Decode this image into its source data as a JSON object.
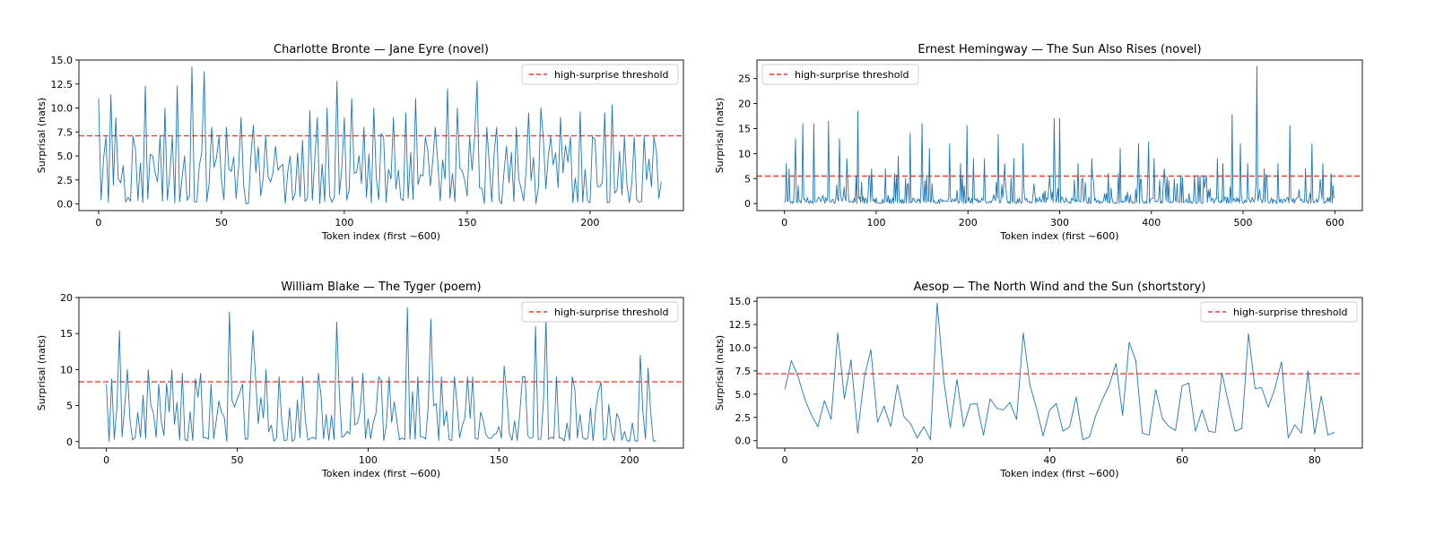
{
  "threshold_color": "#e8412f",
  "series_color": "#1f77b4",
  "chart_data": [
    {
      "type": "line",
      "title": "Charlotte Bronte — Jane Eyre (novel)",
      "xlabel": "Token index (first ~600)",
      "ylabel": "Surprisal (nats)",
      "xlim": [
        -8,
        238
      ],
      "ylim": [
        -0.7,
        15.0
      ],
      "xticks": [
        0,
        50,
        100,
        150,
        200
      ],
      "yticks": [
        0.0,
        2.5,
        5.0,
        7.5,
        10.0,
        12.5,
        15.0
      ],
      "ytick_decimals": 1,
      "threshold": 7.1,
      "legend": "high-surprise threshold",
      "legend_position": "top-right",
      "n_points": 230,
      "peaks": [
        [
          0,
          11
        ],
        [
          3,
          7
        ],
        [
          5,
          11.4
        ],
        [
          7,
          9
        ],
        [
          10,
          4
        ],
        [
          14,
          7
        ],
        [
          19,
          12.3
        ],
        [
          22,
          5
        ],
        [
          25,
          7
        ],
        [
          27,
          10
        ],
        [
          30,
          7
        ],
        [
          32,
          12.3
        ],
        [
          35,
          5
        ],
        [
          38,
          14.3
        ],
        [
          41,
          4
        ],
        [
          43,
          13.8
        ],
        [
          46,
          8
        ],
        [
          49,
          7
        ],
        [
          52,
          8
        ],
        [
          58,
          9
        ],
        [
          63,
          8.2
        ],
        [
          68,
          7
        ],
        [
          72,
          6
        ],
        [
          78,
          5
        ],
        [
          86,
          9.7
        ],
        [
          89,
          9
        ],
        [
          93,
          10
        ],
        [
          97,
          12.8
        ],
        [
          100,
          9
        ],
        [
          103,
          11
        ],
        [
          108,
          8
        ],
        [
          112,
          10
        ],
        [
          116,
          7
        ],
        [
          120,
          9
        ],
        [
          125,
          9.5
        ],
        [
          129,
          11
        ],
        [
          133,
          7
        ],
        [
          137,
          8
        ],
        [
          142,
          12
        ],
        [
          146,
          10
        ],
        [
          151,
          7
        ],
        [
          154,
          12.8
        ],
        [
          158,
          8
        ],
        [
          162,
          8
        ],
        [
          166,
          6
        ],
        [
          170,
          8
        ],
        [
          175,
          9.5
        ],
        [
          180,
          10
        ],
        [
          184,
          7
        ],
        [
          188,
          9
        ],
        [
          192,
          7
        ],
        [
          196,
          9.6
        ],
        [
          201,
          7
        ],
        [
          206,
          9.5
        ],
        [
          209,
          10.3
        ],
        [
          214,
          7
        ],
        [
          218,
          7
        ],
        [
          222,
          7
        ],
        [
          226,
          7
        ]
      ],
      "valleys": [
        [
          160,
          0.2
        ],
        [
          162,
          0.1
        ],
        [
          199,
          0.3
        ],
        [
          200,
          0.1
        ],
        [
          203,
          1.8
        ],
        [
          205,
          2.2
        ],
        [
          206,
          2.1
        ]
      ],
      "base_level": 2.5,
      "seed": 11
    },
    {
      "type": "line",
      "title": "Ernest Hemingway — The Sun Also Rises (novel)",
      "xlabel": "Token index (first ~600)",
      "ylabel": "Surprisal (nats)",
      "xlim": [
        -30,
        630
      ],
      "ylim": [
        -1.4,
        28.7
      ],
      "xticks": [
        0,
        100,
        200,
        300,
        400,
        500,
        600
      ],
      "yticks": [
        0,
        5,
        10,
        15,
        20,
        25
      ],
      "ytick_decimals": 0,
      "threshold": 5.5,
      "legend": "high-surprise threshold",
      "legend_position": "top-left",
      "n_points": 601,
      "peaks": [
        [
          2,
          8
        ],
        [
          5,
          7
        ],
        [
          12,
          13
        ],
        [
          20,
          16
        ],
        [
          32,
          16
        ],
        [
          48,
          16.5
        ],
        [
          60,
          13
        ],
        [
          68,
          9
        ],
        [
          80,
          18.5
        ],
        [
          95,
          7
        ],
        [
          110,
          7
        ],
        [
          124,
          9.5
        ],
        [
          137,
          14
        ],
        [
          150,
          16
        ],
        [
          158,
          11
        ],
        [
          180,
          12
        ],
        [
          192,
          8
        ],
        [
          199,
          15.6
        ],
        [
          206,
          9
        ],
        [
          218,
          9
        ],
        [
          233,
          13.8
        ],
        [
          240,
          8
        ],
        [
          250,
          9
        ],
        [
          260,
          12
        ],
        [
          290,
          3
        ],
        [
          294,
          17
        ],
        [
          300,
          17
        ],
        [
          320,
          8
        ],
        [
          335,
          9
        ],
        [
          366,
          11
        ],
        [
          386,
          12
        ],
        [
          397,
          12.3
        ],
        [
          403,
          9
        ],
        [
          414,
          7
        ],
        [
          464,
          3
        ],
        [
          472,
          9
        ],
        [
          478,
          8
        ],
        [
          488,
          17.8
        ],
        [
          497,
          12
        ],
        [
          505,
          8
        ],
        [
          515,
          27.5
        ],
        [
          523,
          7
        ],
        [
          538,
          8
        ],
        [
          551,
          15.6
        ],
        [
          568,
          7
        ],
        [
          575,
          12
        ],
        [
          587,
          8
        ],
        [
          596,
          6
        ]
      ],
      "valleys": [
        [
          265,
          0.3
        ],
        [
          270,
          0.2
        ],
        [
          276,
          0.5
        ],
        [
          282,
          2.2
        ],
        [
          284,
          2.6
        ],
        [
          288,
          2.8
        ],
        [
          292,
          2.4
        ],
        [
          340,
          0.2
        ],
        [
          345,
          0.1
        ],
        [
          352,
          0.2
        ],
        [
          358,
          0.3
        ],
        [
          420,
          0.1
        ],
        [
          430,
          0.2
        ],
        [
          440,
          0.1
        ],
        [
          450,
          0.1
        ],
        [
          455,
          0.1
        ]
      ],
      "base_level": 0.6,
      "seed": 23
    },
    {
      "type": "line",
      "title": "William Blake — The Tyger (poem)",
      "xlabel": "Token index (first ~600)",
      "ylabel": "Surprisal (nats)",
      "xlim": [
        -10.5,
        220.5
      ],
      "ylim": [
        -0.9,
        20.0
      ],
      "xticks": [
        0,
        50,
        100,
        150,
        200
      ],
      "yticks": [
        0,
        5,
        10,
        15,
        20
      ],
      "ytick_decimals": 0,
      "threshold": 8.3,
      "legend": "high-surprise threshold",
      "legend_position": "top-right",
      "n_points": 211,
      "peaks": [
        [
          0,
          8
        ],
        [
          2,
          8.7
        ],
        [
          5,
          15.4
        ],
        [
          8,
          10
        ],
        [
          16,
          10
        ],
        [
          20,
          8
        ],
        [
          25,
          10
        ],
        [
          29,
          9.5
        ],
        [
          36,
          9.5
        ],
        [
          40,
          8
        ],
        [
          47,
          18
        ],
        [
          52,
          8
        ],
        [
          56,
          15.4
        ],
        [
          61,
          10
        ],
        [
          66,
          9
        ],
        [
          75,
          9
        ],
        [
          81,
          9.5
        ],
        [
          88,
          16.6
        ],
        [
          94,
          9
        ],
        [
          98,
          9.5
        ],
        [
          104,
          9
        ],
        [
          108,
          9
        ],
        [
          115,
          18.6
        ],
        [
          119,
          9
        ],
        [
          124,
          17
        ],
        [
          128,
          9
        ],
        [
          133,
          9
        ],
        [
          140,
          9
        ],
        [
          152,
          10.5
        ],
        [
          160,
          9
        ],
        [
          164,
          16
        ],
        [
          168,
          17
        ],
        [
          172,
          9
        ],
        [
          178,
          9
        ],
        [
          204,
          12
        ],
        [
          207,
          10.2
        ]
      ],
      "valleys": [
        [
          180,
          0.5
        ],
        [
          183,
          0.3
        ],
        [
          186,
          0.1
        ],
        [
          190,
          0.2
        ],
        [
          194,
          0.1
        ],
        [
          197,
          0.2
        ],
        [
          199,
          0.1
        ],
        [
          200,
          0.1
        ],
        [
          202,
          0.1
        ],
        [
          203,
          0.1
        ],
        [
          209,
          0.1
        ],
        [
          210,
          0.1
        ]
      ],
      "base_level": 3.0,
      "seed": 37
    },
    {
      "type": "line",
      "title": "Aesop — The North Wind and the Sun (shortstory)",
      "xlabel": "Token index (first ~600)",
      "ylabel": "Surprisal (nats)",
      "xlim": [
        -4.2,
        87.2
      ],
      "ylim": [
        -0.8,
        15.4
      ],
      "xticks": [
        0,
        20,
        40,
        60,
        80
      ],
      "yticks": [
        0.0,
        2.5,
        5.0,
        7.5,
        10.0,
        12.5,
        15.0
      ],
      "ytick_decimals": 1,
      "threshold": 7.2,
      "legend": "high-surprise threshold",
      "legend_position": "top-right",
      "n_points": 84,
      "values": [
        5.5,
        8.6,
        6.9,
        4.5,
        2.8,
        1.5,
        4.3,
        2.3,
        11.6,
        4.5,
        8.7,
        0.8,
        6.8,
        9.8,
        2.0,
        3.7,
        1.5,
        6.0,
        2.6,
        1.8,
        0.3,
        1.5,
        0.1,
        14.8,
        6.5,
        1.4,
        6.6,
        1.5,
        3.9,
        4.0,
        0.6,
        4.5,
        3.5,
        3.3,
        4.1,
        2.3,
        11.6,
        6.0,
        3.5,
        0.5,
        3.3,
        4.0,
        1.0,
        1.5,
        4.7,
        0.1,
        0.4,
        2.8,
        4.5,
        6.0,
        8.3,
        2.7,
        10.6,
        8.6,
        0.8,
        0.6,
        5.5,
        2.4,
        1.5,
        1.1,
        5.9,
        6.2,
        1.0,
        3.3,
        1.0,
        0.9,
        7.3,
        4.0,
        1.0,
        1.3,
        11.5,
        5.6,
        5.7,
        3.6,
        5.6,
        8.5,
        0.3,
        1.7,
        0.8,
        7.5,
        0.7,
        4.8,
        0.6,
        0.9
      ]
    }
  ]
}
